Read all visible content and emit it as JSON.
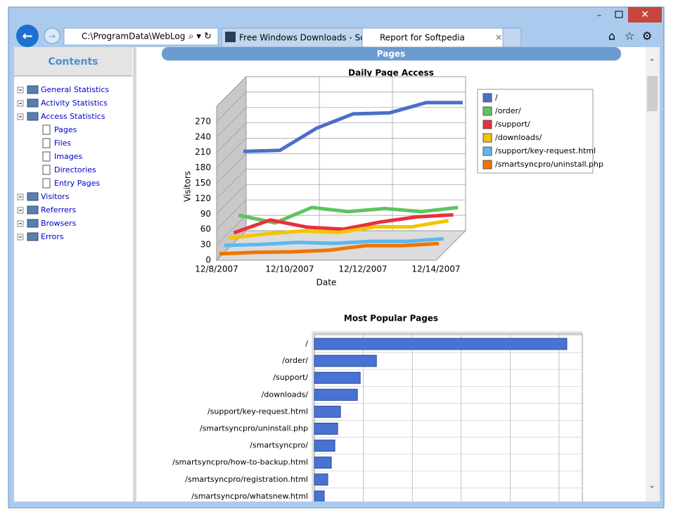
{
  "browser": {
    "address": "C:\\ProgramData\\WebLog",
    "tabs": [
      "Free Windows Downloads - So...",
      "Report for Softpedia"
    ]
  },
  "sidebar": {
    "title": "Contents",
    "items": [
      "General Statistics",
      "Activity Statistics",
      "Access Statistics",
      "Pages",
      "Files",
      "Images",
      "Directories",
      "Entry Pages",
      "Visitors",
      "Referrers",
      "Browsers",
      "Errors"
    ]
  },
  "page": {
    "heading": "Pages"
  },
  "chart_data": [
    {
      "type": "line",
      "title": "Daily Page Access",
      "x_label": "Date",
      "y_label": "Visitors",
      "categories": [
        "12/8/2007",
        null,
        "12/10/2007",
        null,
        "12/12/2007",
        null,
        "12/14/2007"
      ],
      "ylim": [
        0,
        300
      ],
      "yticks": [
        0,
        30,
        60,
        90,
        120,
        150,
        180,
        210,
        240,
        270
      ],
      "grid": true,
      "legend": "right",
      "series": [
        {
          "name": "/",
          "color": "#4a6fc7",
          "values": [
            160,
            162,
            205,
            233,
            235,
            255,
            255
          ]
        },
        {
          "name": "/order/",
          "color": "#5ec45e",
          "values": [
            45,
            30,
            60,
            52,
            58,
            52,
            60
          ]
        },
        {
          "name": "/support/",
          "color": "#e8303f",
          "values": [
            20,
            45,
            31,
            27,
            41,
            51,
            55
          ]
        },
        {
          "name": "/downloads/",
          "color": "#f5c400",
          "values": [
            19,
            27,
            33,
            30,
            41,
            41,
            53
          ]
        },
        {
          "name": "/support/key-request.html",
          "color": "#5bb8f0",
          "values": [
            14,
            16,
            20,
            18,
            22,
            22,
            27
          ]
        },
        {
          "name": "/smartsyncpro/uninstall.php",
          "color": "#f07400",
          "values": [
            7,
            10,
            11,
            14,
            23,
            23,
            27
          ]
        }
      ]
    },
    {
      "type": "hbar",
      "title": "Most Popular Pages",
      "color": "#4a72d4",
      "xlim": [
        0,
        380
      ],
      "categories": [
        "/",
        "/order/",
        "/support/",
        "/downloads/",
        "/support/key-request.html",
        "/smartsyncpro/uninstall.php",
        "/smartsyncpro/",
        "/smartsyncpro/how-to-backup.html",
        "/smartsyncpro/registration.html",
        "/smartsyncpro/whatsnew.html"
      ],
      "values": [
        358,
        88,
        65,
        61,
        37,
        33,
        29,
        24,
        19,
        14
      ]
    }
  ]
}
